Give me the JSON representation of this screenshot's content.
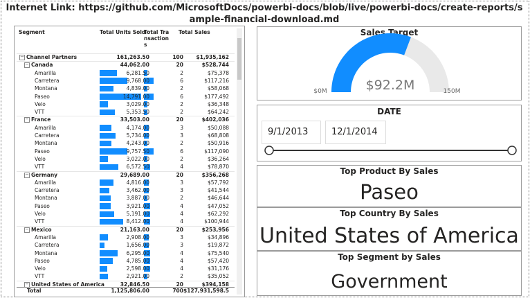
{
  "header": {
    "title": "Internet Link: https://github.com/MicrosoftDocs/powerbi-docs/blob/live/powerbi-docs/create-reports/sample-financial-download.md"
  },
  "table": {
    "columns": [
      "Segment",
      "Total Units Sold",
      "Total Transactions",
      "Total Sales"
    ],
    "bar_color": "#118DFF",
    "rows": [
      {
        "level": 0,
        "cells": [
          "Channel Partners",
          "161,263.50",
          "100",
          "$1,935,162"
        ]
      },
      {
        "level": 1,
        "cells": [
          "Canada",
          "44,062.00",
          "20",
          "$528,744"
        ]
      },
      {
        "level": 2,
        "cells": [
          "Amarilla",
          "6,281.50",
          "2",
          "$75,378"
        ]
      },
      {
        "level": 2,
        "cells": [
          "Carretera",
          "9,768.00",
          "6",
          "$117,216"
        ]
      },
      {
        "level": 2,
        "cells": [
          "Montana",
          "4,839.00",
          "2",
          "$58,068"
        ]
      },
      {
        "level": 2,
        "cells": [
          "Paseo",
          "14,791.00",
          "6",
          "$177,492"
        ]
      },
      {
        "level": 2,
        "cells": [
          "Velo",
          "3,029.00",
          "2",
          "$36,348"
        ]
      },
      {
        "level": 2,
        "cells": [
          "VTT",
          "5,353.50",
          "2",
          "$64,242"
        ]
      },
      {
        "level": 1,
        "cells": [
          "France",
          "33,503.00",
          "20",
          "$402,036"
        ]
      },
      {
        "level": 2,
        "cells": [
          "Amarilla",
          "4,174.00",
          "3",
          "$50,088"
        ]
      },
      {
        "level": 2,
        "cells": [
          "Carretera",
          "5,734.00",
          "3",
          "$68,808"
        ]
      },
      {
        "level": 2,
        "cells": [
          "Montana",
          "4,243.00",
          "2",
          "$50,916"
        ]
      },
      {
        "level": 2,
        "cells": [
          "Paseo",
          "9,757.50",
          "6",
          "$117,090"
        ]
      },
      {
        "level": 2,
        "cells": [
          "Velo",
          "3,022.00",
          "2",
          "$36,264"
        ]
      },
      {
        "level": 2,
        "cells": [
          "VTT",
          "6,572.50",
          "4",
          "$78,870"
        ]
      },
      {
        "level": 1,
        "cells": [
          "Germany",
          "29,689.00",
          "20",
          "$356,268"
        ]
      },
      {
        "level": 2,
        "cells": [
          "Amarilla",
          "4,816.00",
          "3",
          "$57,792"
        ]
      },
      {
        "level": 2,
        "cells": [
          "Carretera",
          "3,462.00",
          "3",
          "$41,544"
        ]
      },
      {
        "level": 2,
        "cells": [
          "Montana",
          "3,887.00",
          "2",
          "$46,644"
        ]
      },
      {
        "level": 2,
        "cells": [
          "Paseo",
          "3,921.00",
          "4",
          "$47,052"
        ]
      },
      {
        "level": 2,
        "cells": [
          "Velo",
          "5,191.00",
          "4",
          "$62,292"
        ]
      },
      {
        "level": 2,
        "cells": [
          "VTT",
          "8,412.00",
          "4",
          "$100,944"
        ]
      },
      {
        "level": 1,
        "cells": [
          "Mexico",
          "21,163.00",
          "20",
          "$253,956"
        ]
      },
      {
        "level": 2,
        "cells": [
          "Amarilla",
          "2,908.00",
          "3",
          "$34,896"
        ]
      },
      {
        "level": 2,
        "cells": [
          "Carretera",
          "1,656.00",
          "3",
          "$19,872"
        ]
      },
      {
        "level": 2,
        "cells": [
          "Montana",
          "6,295.00",
          "4",
          "$75,540"
        ]
      },
      {
        "level": 2,
        "cells": [
          "Paseo",
          "4,785.00",
          "4",
          "$57,420"
        ]
      },
      {
        "level": 2,
        "cells": [
          "Velo",
          "2,598.00",
          "4",
          "$31,176"
        ]
      },
      {
        "level": 2,
        "cells": [
          "VTT",
          "2,921.00",
          "2",
          "$35,052"
        ]
      },
      {
        "level": 1,
        "cells": [
          "United States of America",
          "32,846.50",
          "20",
          "$394,158"
        ]
      }
    ],
    "total": [
      "Total",
      "1,125,806.00",
      "700",
      "$127,931,598.5"
    ]
  },
  "gauge": {
    "title": "Sales Target",
    "value": {
      "value": 92.2,
      "label": "$92.2M"
    },
    "min": {
      "value": 0,
      "label": "$0M"
    },
    "max": {
      "value": 150,
      "label": "150M"
    },
    "color": "#118DFF",
    "track_color": "#E9E9E9"
  },
  "date_slicer": {
    "title": "DATE",
    "start": "9/1/2013",
    "end": "12/1/2014"
  },
  "cards": [
    {
      "title": "Top Product By Sales",
      "value": "Paseo"
    },
    {
      "title": "Top Country By Sales",
      "value": "United States of America"
    },
    {
      "title": "Top Segment by Sales",
      "value": "Government"
    }
  ]
}
